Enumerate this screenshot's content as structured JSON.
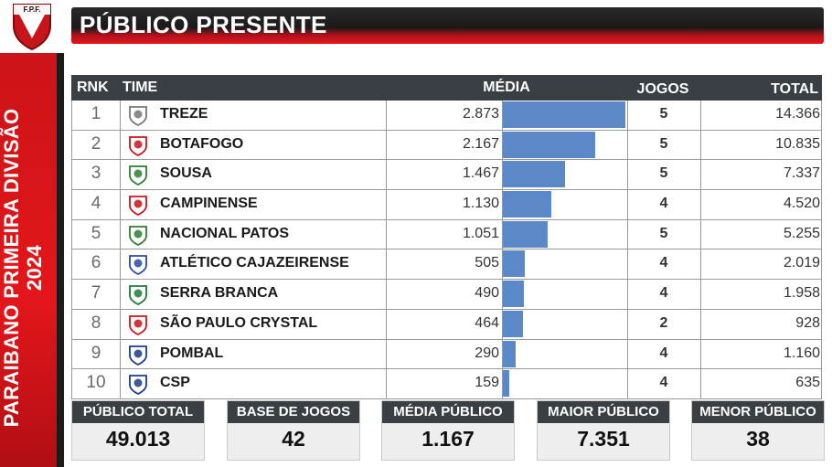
{
  "federation": {
    "abbr": "F.P.F."
  },
  "sidebar": {
    "line1": "PARAIBANO PRIMEIRA DIVISÃO",
    "line2": "2024"
  },
  "header": {
    "title": "PÚBLICO PRESENTE"
  },
  "table": {
    "columns": {
      "rank": "RNK",
      "team": "TIME",
      "media": "MÉDIA",
      "jogos": "JOGOS",
      "total": "TOTAL"
    },
    "rows": [
      {
        "rank": "1",
        "team": "TREZE",
        "media": "2.873",
        "media_value": 2873,
        "jogos": "5",
        "total": "14.366"
      },
      {
        "rank": "2",
        "team": "BOTAFOGO",
        "media": "2.167",
        "media_value": 2167,
        "jogos": "5",
        "total": "10.835"
      },
      {
        "rank": "3",
        "team": "SOUSA",
        "media": "1.467",
        "media_value": 1467,
        "jogos": "5",
        "total": "7.337"
      },
      {
        "rank": "4",
        "team": "CAMPINENSE",
        "media": "1.130",
        "media_value": 1130,
        "jogos": "4",
        "total": "4.520"
      },
      {
        "rank": "5",
        "team": "NACIONAL PATOS",
        "media": "1.051",
        "media_value": 1051,
        "jogos": "5",
        "total": "5.255"
      },
      {
        "rank": "6",
        "team": "ATLÉTICO CAJAZEIRENSE",
        "media": "505",
        "media_value": 505,
        "jogos": "4",
        "total": "2.019"
      },
      {
        "rank": "7",
        "team": "SERRA BRANCA",
        "media": "490",
        "media_value": 490,
        "jogos": "4",
        "total": "1.958"
      },
      {
        "rank": "8",
        "team": "SÃO PAULO CRYSTAL",
        "media": "464",
        "media_value": 464,
        "jogos": "2",
        "total": "928"
      },
      {
        "rank": "9",
        "team": "POMBAL",
        "media": "290",
        "media_value": 290,
        "jogos": "4",
        "total": "1.160"
      },
      {
        "rank": "10",
        "team": "CSP",
        "media": "159",
        "media_value": 159,
        "jogos": "4",
        "total": "635"
      }
    ],
    "bar_color": "#5b88c6",
    "media_max": 2873
  },
  "stats": [
    {
      "label": "PÚBLICO TOTAL",
      "value": "49.013"
    },
    {
      "label": "BASE DE JOGOS",
      "value": "42"
    },
    {
      "label": "MÉDIA PÚBLICO",
      "value": "1.167"
    },
    {
      "label": "MAIOR PÚBLICO",
      "value": "7.351"
    },
    {
      "label": "MENOR PÚBLICO",
      "value": "38"
    }
  ],
  "team_icons": [
    "treze-crest-icon",
    "botafogo-crest-icon",
    "sousa-crest-icon",
    "campinense-crest-icon",
    "nacional-patos-crest-icon",
    "atletico-cajazeirense-crest-icon",
    "serra-branca-crest-icon",
    "sao-paulo-crystal-crest-icon",
    "pombal-crest-icon",
    "csp-crest-icon"
  ],
  "colors": {
    "accent_red": "#e3161b",
    "header_dark": "#1a1a1a",
    "table_header": "#3a3f44"
  }
}
